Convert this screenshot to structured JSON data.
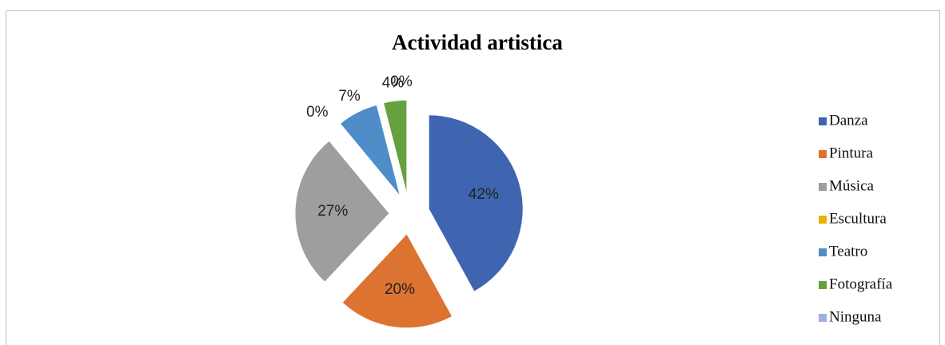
{
  "chart_data": {
    "type": "pie",
    "title": "Actividad artistica",
    "categories": [
      "Danza",
      "Pintura",
      "Música",
      "Escultura",
      "Teatro",
      "Fotografía",
      "Ninguna"
    ],
    "values": [
      42,
      20,
      27,
      0,
      7,
      4,
      0
    ],
    "value_labels": [
      "42%",
      "20%",
      "27%",
      "0%",
      "7%",
      "4%",
      "0%"
    ],
    "colors": [
      "#3f65b1",
      "#dc7330",
      "#9e9e9e",
      "#e8b200",
      "#4f8dc9",
      "#66a13f",
      "#9dafe3"
    ],
    "legend": "right"
  }
}
